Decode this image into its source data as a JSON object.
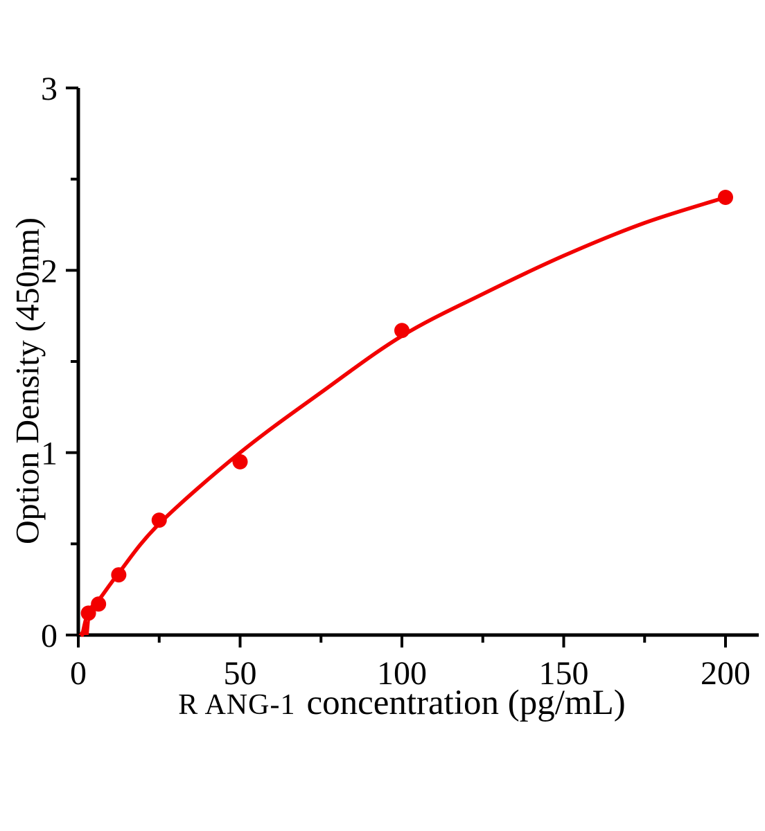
{
  "figure": {
    "background": "#ffffff",
    "axis_color": "#000000",
    "accent_red": "#f20000"
  },
  "chart_data": {
    "type": "scatter",
    "title": "",
    "xlabel_prefix": "R ANG-1",
    "xlabel_rest": "concentration（pg/mL）",
    "ylabel": "Option Density（450nm）",
    "xlim": [
      0,
      210
    ],
    "ylim": [
      0,
      3
    ],
    "grid": false,
    "legend": "none",
    "x_major_ticks": [
      0,
      50,
      100,
      150,
      200
    ],
    "x_minor_ticks": [
      25,
      75,
      125,
      175
    ],
    "y_major_ticks": [
      0,
      1,
      2,
      3
    ],
    "y_minor_ticks": [
      0.5,
      1.5,
      2.5
    ],
    "series": [
      {
        "name": "standard points",
        "role": "scatter",
        "color": "#f20000",
        "points": [
          {
            "x": 3.125,
            "y": 0.12
          },
          {
            "x": 6.25,
            "y": 0.17
          },
          {
            "x": 12.5,
            "y": 0.33
          },
          {
            "x": 25,
            "y": 0.63
          },
          {
            "x": 50,
            "y": 0.95
          },
          {
            "x": 100,
            "y": 1.67
          },
          {
            "x": 200,
            "y": 2.4
          }
        ]
      },
      {
        "name": "fitted curve",
        "role": "line",
        "color": "#f20000",
        "points": [
          {
            "x": 1.2,
            "y": 0
          },
          {
            "x": 3.125,
            "y": 0.13
          },
          {
            "x": 6.25,
            "y": 0.19
          },
          {
            "x": 12.5,
            "y": 0.34
          },
          {
            "x": 25,
            "y": 0.61
          },
          {
            "x": 50,
            "y": 1.0
          },
          {
            "x": 75,
            "y": 1.33
          },
          {
            "x": 100,
            "y": 1.64
          },
          {
            "x": 125,
            "y": 1.87
          },
          {
            "x": 150,
            "y": 2.08
          },
          {
            "x": 175,
            "y": 2.26
          },
          {
            "x": 200,
            "y": 2.4
          }
        ]
      }
    ]
  }
}
